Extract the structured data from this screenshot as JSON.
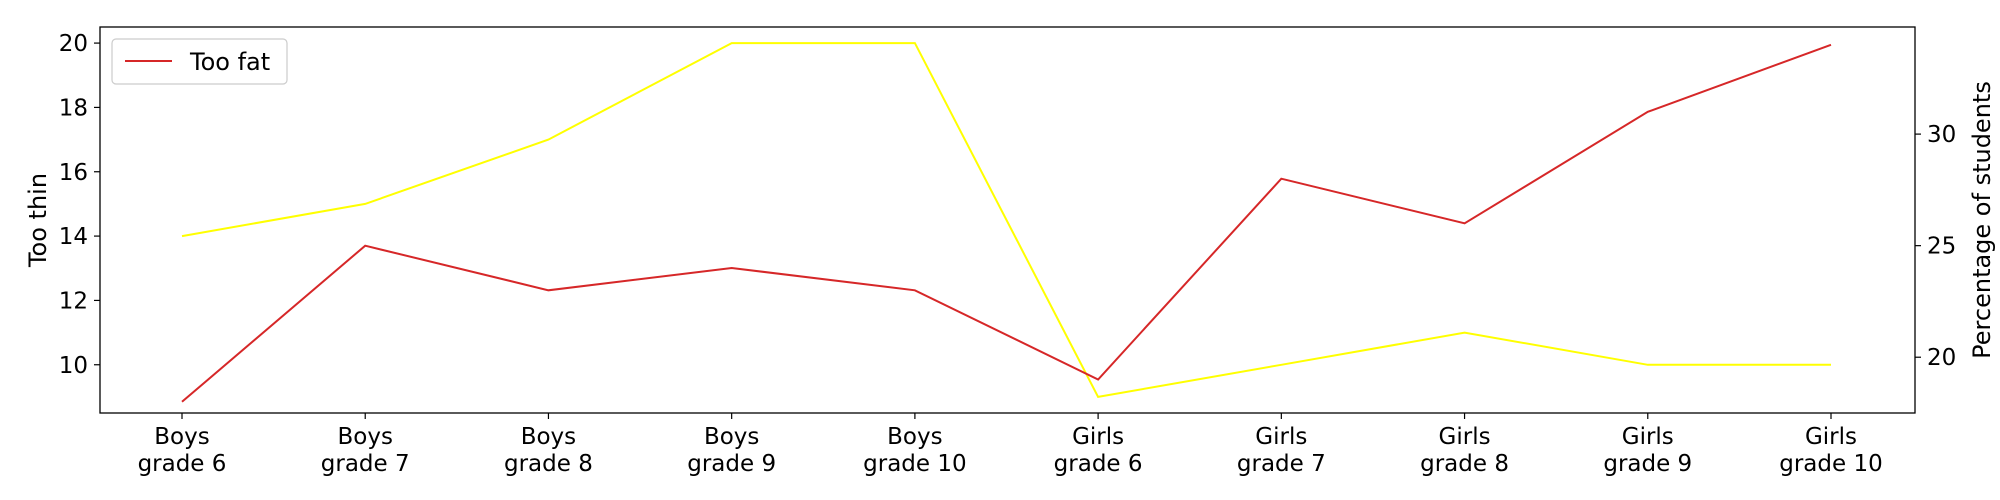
{
  "chart_data": {
    "type": "line",
    "title": "",
    "categories": [
      [
        "Boys",
        "grade 6"
      ],
      [
        "Boys",
        "grade 7"
      ],
      [
        "Boys",
        "grade 8"
      ],
      [
        "Boys",
        "grade 9"
      ],
      [
        "Boys",
        "grade 10"
      ],
      [
        "Girls",
        "grade 6"
      ],
      [
        "Girls",
        "grade 7"
      ],
      [
        "Girls",
        "grade 8"
      ],
      [
        "Girls",
        "grade 9"
      ],
      [
        "Girls",
        "grade 10"
      ]
    ],
    "ylabel_left": "Too thin",
    "ylabel_right": "Percentage of students",
    "ylim_left": [
      8.5,
      20.5
    ],
    "yticks_left": [
      10,
      12,
      14,
      16,
      18,
      20
    ],
    "ylim_right": [
      17.5,
      34.8
    ],
    "yticks_right": [
      20,
      25,
      30
    ],
    "grid": false,
    "legend": {
      "position": "top-left",
      "entries": [
        "Too fat"
      ]
    },
    "series": [
      {
        "axis": "left",
        "color": "#ffff00",
        "values": [
          14,
          15,
          17,
          20,
          20,
          9,
          10,
          11,
          10,
          10
        ]
      },
      {
        "name": "Too fat",
        "axis": "right",
        "color": "#d62728",
        "values": [
          18,
          25,
          23,
          24,
          23,
          19,
          28,
          26,
          31,
          34
        ]
      }
    ]
  }
}
